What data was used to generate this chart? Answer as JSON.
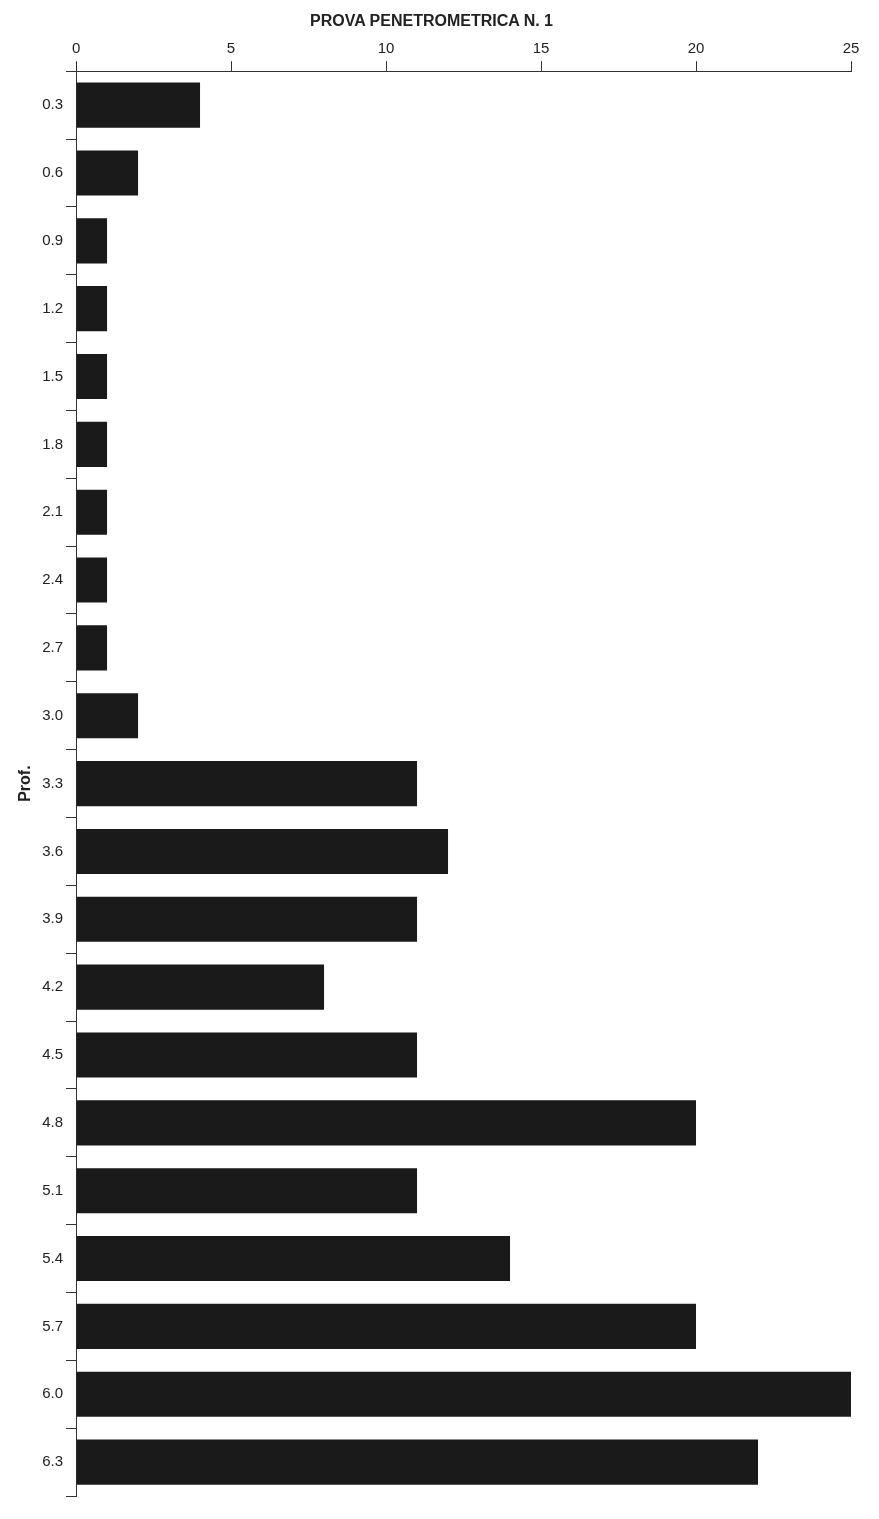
{
  "chart_data": {
    "type": "bar",
    "orientation": "horizontal",
    "title": "PROVA PENETROMETRICA N. 1",
    "ylabel": "Prof.",
    "categories": [
      "0.3",
      "0.6",
      "0.9",
      "1.2",
      "1.5",
      "1.8",
      "2.1",
      "2.4",
      "2.7",
      "3.0",
      "3.3",
      "3.6",
      "3.9",
      "4.2",
      "4.5",
      "4.8",
      "5.1",
      "5.4",
      "5.7",
      "6.0",
      "6.3"
    ],
    "values": [
      4,
      2,
      1,
      1,
      1,
      1,
      1,
      1,
      1,
      2,
      11,
      12,
      11,
      8,
      11,
      20,
      11,
      14,
      20,
      25,
      22
    ],
    "color": "#1a1a1a",
    "xlim": [
      0,
      25
    ],
    "xticks": [
      0,
      5,
      10,
      15,
      20,
      25
    ],
    "grid": false,
    "legend": false
  }
}
